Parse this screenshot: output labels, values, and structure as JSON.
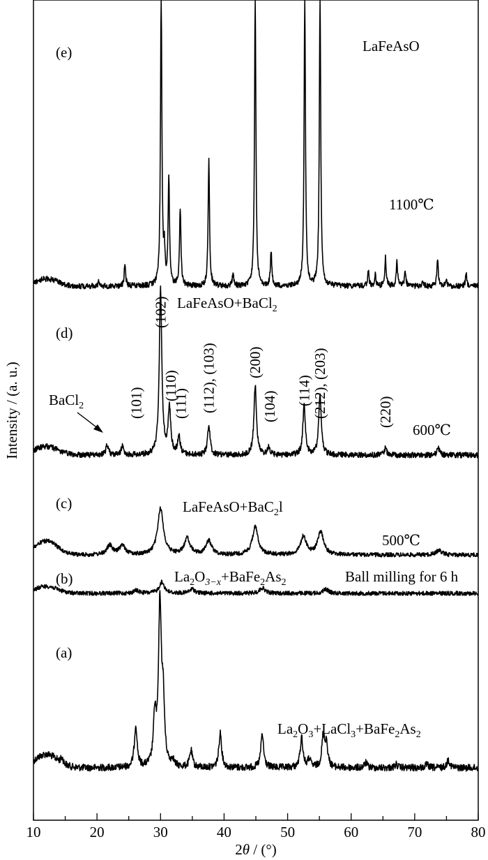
{
  "chart_data": {
    "type": "line",
    "xlabel": "2θ / (°)",
    "ylabel": "Intensity / (a. u.)",
    "xlim": [
      10,
      80
    ],
    "xticks": [
      10,
      20,
      30,
      40,
      50,
      60,
      70,
      80
    ],
    "grid": false,
    "legend": "none",
    "series": [
      {
        "panel": "(a)",
        "label": "La2O3+LaCl3+BaFe2As2",
        "baseline": 0.08,
        "peaks": [
          [
            14.5,
            0.03
          ],
          [
            26.1,
            0.25
          ],
          [
            29.1,
            0.29
          ],
          [
            29.9,
            0.95
          ],
          [
            30.4,
            0.37
          ],
          [
            31.9,
            0.04
          ],
          [
            34.8,
            0.1
          ],
          [
            39.4,
            0.21
          ],
          [
            46.0,
            0.2
          ],
          [
            52.2,
            0.18
          ],
          [
            53.4,
            0.05
          ],
          [
            55.6,
            0.18
          ],
          [
            56.1,
            0.14
          ],
          [
            62.3,
            0.03
          ],
          [
            67.1,
            0.02
          ],
          [
            71.9,
            0.02
          ],
          [
            75.3,
            0.05
          ]
        ]
      },
      {
        "panel": "(b)",
        "label": "La2O3−x+BaFe2As2",
        "condition": "Ball milling for 6 h",
        "baseline": 0.05,
        "peaks": [
          [
            26.2,
            0.02
          ],
          [
            30.2,
            0.08
          ],
          [
            35.0,
            0.03
          ],
          [
            46.0,
            0.04
          ],
          [
            56.0,
            0.03
          ]
        ]
      },
      {
        "panel": "(c)",
        "label": "LaFeAsO+BaC2l",
        "condition": "500℃",
        "baseline": 0.06,
        "peaks": [
          [
            22.0,
            0.04
          ],
          [
            24.0,
            0.04
          ],
          [
            30.0,
            0.2
          ],
          [
            34.2,
            0.07
          ],
          [
            37.6,
            0.06
          ],
          [
            44.9,
            0.12
          ],
          [
            52.5,
            0.08
          ],
          [
            55.2,
            0.1
          ],
          [
            73.8,
            0.02
          ]
        ]
      },
      {
        "panel": "(d)",
        "label": "LaFeAsO+BaCl2",
        "condition": "600℃",
        "baseline": 0.05,
        "peaks": [
          [
            21.6,
            0.06
          ],
          [
            24.0,
            0.05
          ],
          [
            30.0,
            0.95
          ],
          [
            31.4,
            0.26
          ],
          [
            32.9,
            0.1
          ],
          [
            37.6,
            0.17
          ],
          [
            44.9,
            0.4
          ],
          [
            47.0,
            0.04
          ],
          [
            52.6,
            0.28
          ],
          [
            55.1,
            0.35
          ],
          [
            65.4,
            0.04
          ],
          [
            73.7,
            0.04
          ]
        ],
        "annotations": [
          "BaCl2",
          "(101)",
          "(102)",
          "(110)",
          "(111)",
          "(112), (103)",
          "(200)",
          "(104)",
          "(114)",
          "(212), (203)",
          "(220)"
        ]
      },
      {
        "panel": "(e)",
        "label": "LaFeAsO",
        "condition": "1100℃",
        "baseline": 0.04,
        "peaks": [
          [
            20.3,
            0.03
          ],
          [
            24.4,
            0.13
          ],
          [
            30.1,
            1.6
          ],
          [
            30.6,
            0.17
          ],
          [
            31.3,
            0.6
          ],
          [
            33.1,
            0.43
          ],
          [
            37.6,
            0.7
          ],
          [
            41.4,
            0.07
          ],
          [
            44.9,
            1.6
          ],
          [
            47.4,
            0.19
          ],
          [
            52.7,
            1.6
          ],
          [
            55.1,
            1.6
          ],
          [
            62.7,
            0.08
          ],
          [
            63.8,
            0.06
          ],
          [
            65.4,
            0.16
          ],
          [
            67.2,
            0.13
          ],
          [
            68.5,
            0.09
          ],
          [
            71.3,
            0.02
          ],
          [
            73.6,
            0.15
          ],
          [
            75.0,
            0.03
          ],
          [
            78.1,
            0.07
          ]
        ]
      }
    ]
  },
  "annotations": {
    "panel_a": "(a)",
    "panel_b": "(b)",
    "panel_c": "(c)",
    "panel_d": "(d)",
    "panel_e": "(e)",
    "label_a_parts": [
      "La",
      "2",
      "O",
      "3",
      "+LaCl",
      "3",
      "+BaFe",
      "2",
      "As",
      "2"
    ],
    "label_b_parts": [
      "La",
      "2",
      "O",
      "3−x",
      "+BaFe",
      "2",
      "As",
      "2"
    ],
    "label_b_condition": "Ball milling for 6 h",
    "label_c_text": "LaFeAsO+BaC",
    "label_c_sub": "2",
    "label_c_tail": "l",
    "label_c_condition": "500℃",
    "label_d_parts": [
      "LaFeAsO+BaCl",
      "2"
    ],
    "label_d_condition": "600℃",
    "label_e_text": "LaFeAsO",
    "label_e_condition": "1100℃",
    "bacl2_parts": [
      "BaCl",
      "2"
    ],
    "hkl": [
      {
        "text": "(101)",
        "x": 26.2
      },
      {
        "text": "(102)",
        "x": 30.0
      },
      {
        "text": "(110)",
        "x": 31.6
      },
      {
        "text": "(111)",
        "x": 33.2
      },
      {
        "text": "(112), (103)",
        "x": 37.6
      },
      {
        "text": "(200)",
        "x": 44.9
      },
      {
        "text": "(104)",
        "x": 47.2
      },
      {
        "text": "(114)",
        "x": 52.6
      },
      {
        "text": "(212), (203)",
        "x": 55.1
      },
      {
        "text": "(220)",
        "x": 65.4
      }
    ]
  }
}
